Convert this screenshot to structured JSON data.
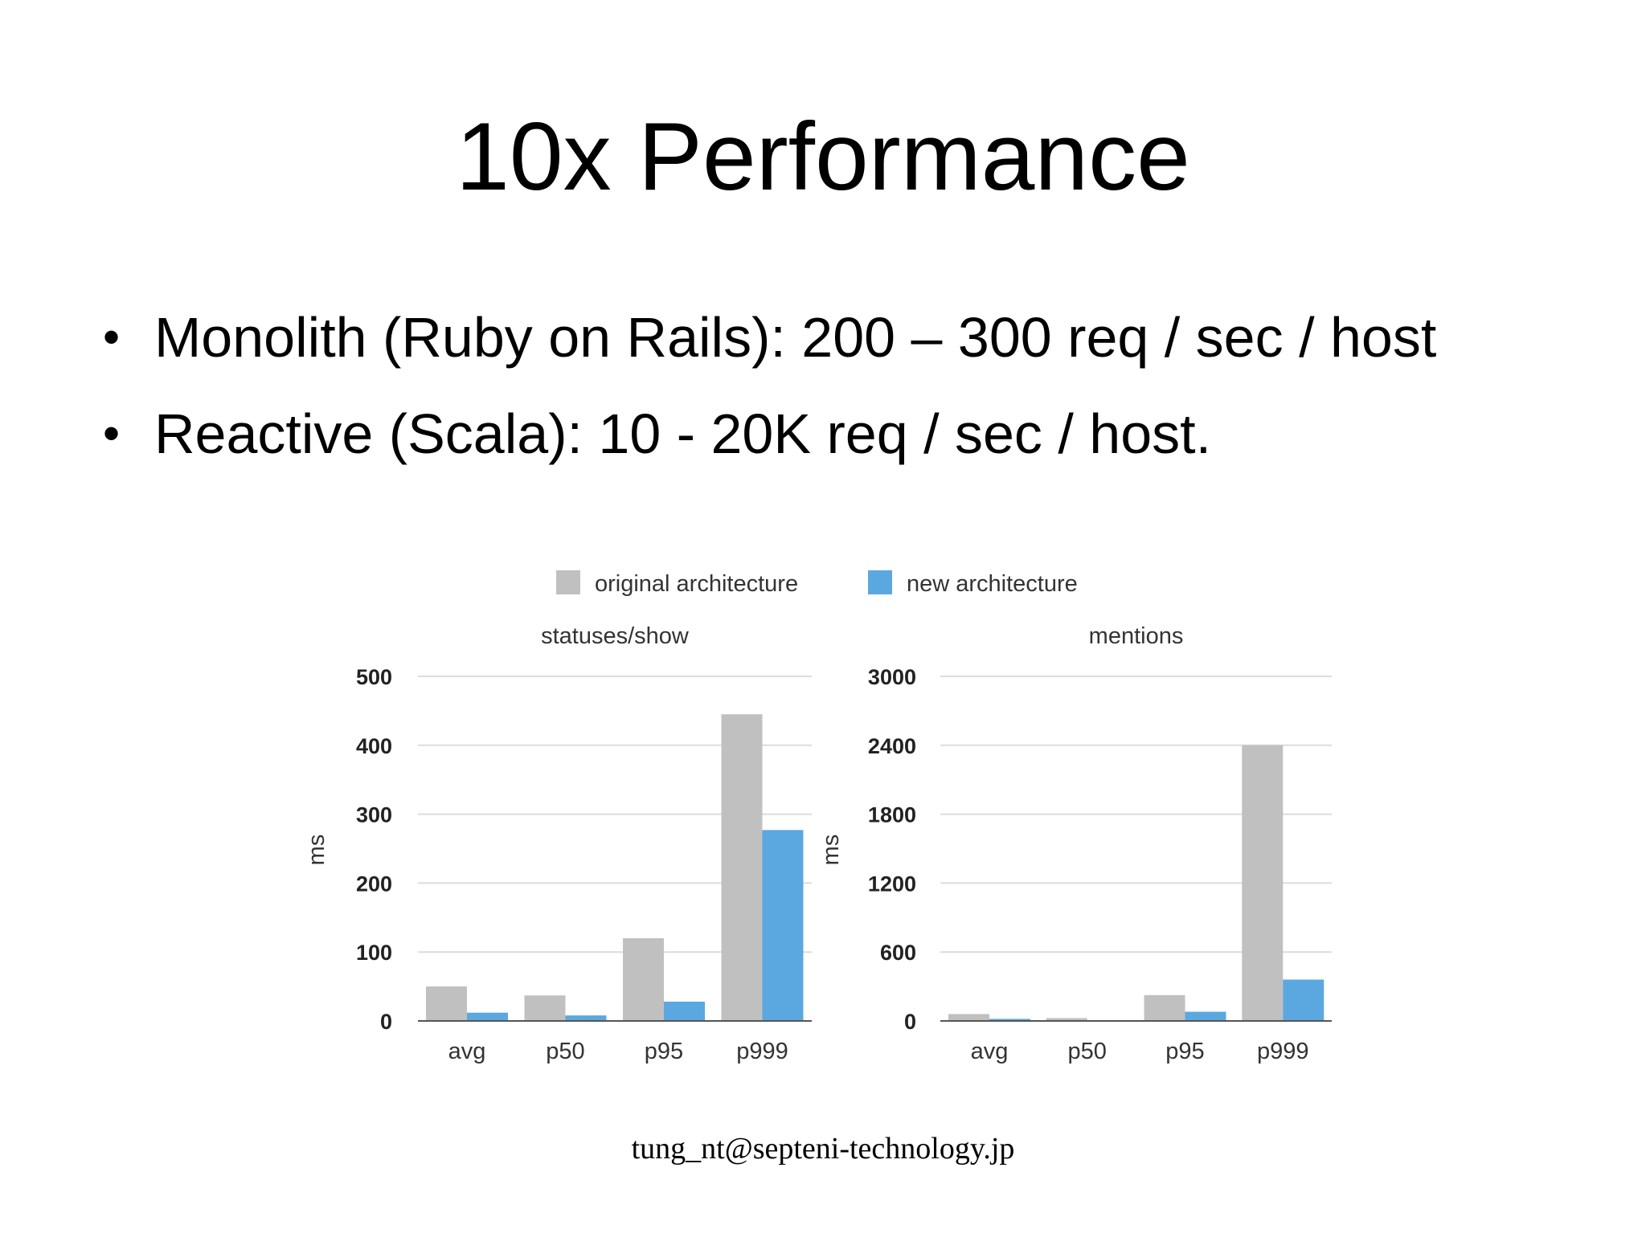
{
  "slide": {
    "title": "10x Performance",
    "bullets": [
      "Monolith (Ruby on Rails): 200 – 300 req / sec / host",
      "Reactive (Scala): 10 - 20K req / sec / host."
    ],
    "footer": "tung_nt@septeni-technology.jp"
  },
  "legend": [
    {
      "label": "original architecture",
      "color": "#c0c0c0"
    },
    {
      "label": "new architecture",
      "color": "#5ba8e0"
    }
  ],
  "chart_data": [
    {
      "type": "bar",
      "title": "statuses/show",
      "ylabel": "ms",
      "xlabel": "",
      "categories": [
        "avg",
        "p50",
        "p95",
        "p999"
      ],
      "ylim": [
        0,
        500
      ],
      "yticks": [
        0,
        100,
        200,
        300,
        400,
        500
      ],
      "grid": true,
      "legend": "top",
      "series": [
        {
          "name": "original architecture",
          "values": [
            50,
            37,
            120,
            445
          ]
        },
        {
          "name": "new architecture",
          "values": [
            12,
            8,
            28,
            277
          ]
        }
      ]
    },
    {
      "type": "bar",
      "title": "mentions",
      "ylabel": "ms",
      "xlabel": "",
      "categories": [
        "avg",
        "p50",
        "p95",
        "p999"
      ],
      "ylim": [
        0,
        3000
      ],
      "yticks": [
        0,
        600,
        1200,
        1800,
        2400,
        3000
      ],
      "grid": true,
      "legend": "top",
      "series": [
        {
          "name": "original architecture",
          "values": [
            60,
            25,
            225,
            2400
          ]
        },
        {
          "name": "new architecture",
          "values": [
            18,
            5,
            80,
            360
          ]
        }
      ]
    }
  ]
}
